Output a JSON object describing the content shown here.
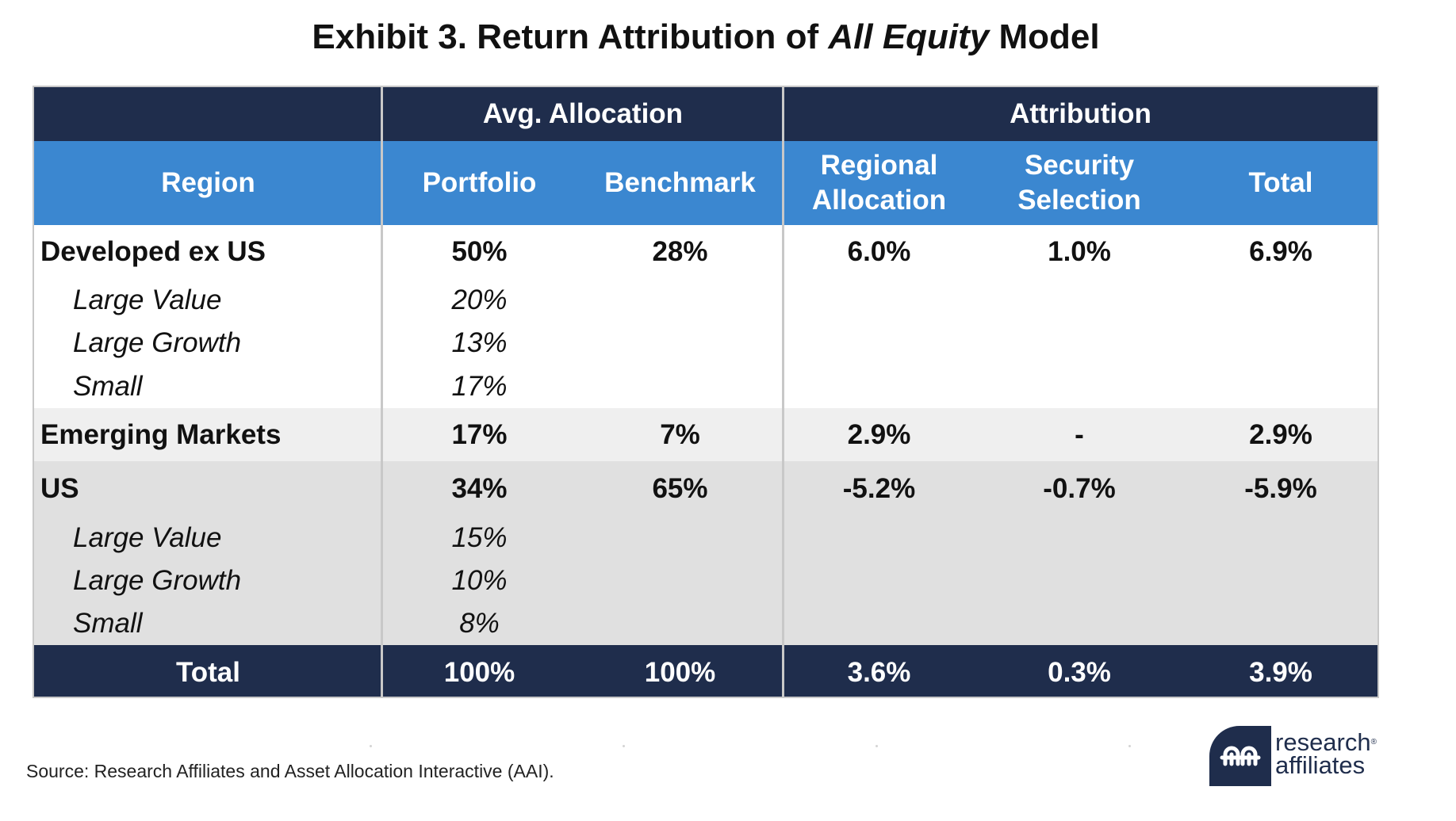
{
  "title": {
    "main": "Exhibit 3. Return Attribution of ",
    "italic": "All Equity",
    "suffix": " Model"
  },
  "chart_data": {
    "type": "table",
    "group_headers": [
      "Avg. Allocation",
      "Attribution"
    ],
    "columns": [
      "Region",
      "Portfolio",
      "Benchmark",
      "Regional Allocation",
      "Security Selection",
      "Total"
    ],
    "rows": [
      {
        "label": "Developed ex US",
        "portfolio": "50%",
        "benchmark": "28%",
        "regional": "6.0%",
        "security": "1.0%",
        "total": "6.9%",
        "subs": [
          {
            "label": "Large Value",
            "portfolio": "20%"
          },
          {
            "label": "Large Growth",
            "portfolio": "13%"
          },
          {
            "label": "Small",
            "portfolio": "17%"
          }
        ]
      },
      {
        "label": "Emerging Markets",
        "portfolio": "17%",
        "benchmark": "7%",
        "regional": "2.9%",
        "security": "-",
        "total": "2.9%"
      },
      {
        "label": "US",
        "portfolio": "34%",
        "benchmark": "65%",
        "regional": "-5.2%",
        "security": "-0.7%",
        "total": "-5.9%",
        "subs": [
          {
            "label": "Large Value",
            "portfolio": "15%"
          },
          {
            "label": "Large Growth",
            "portfolio": "10%"
          },
          {
            "label": "Small",
            "portfolio": "8%"
          }
        ]
      }
    ],
    "total_row": {
      "label": "Total",
      "portfolio": "100%",
      "benchmark": "100%",
      "regional": "3.6%",
      "security": "0.3%",
      "total": "3.9%"
    }
  },
  "headers": {
    "regional_line1": "Regional",
    "regional_line2": "Allocation",
    "security_line1": "Security",
    "security_line2": "Selection"
  },
  "source": "Source: Research Affiliates and Asset Allocation Interactive (AAI).",
  "logo": {
    "line1": "research",
    "line2": "affiliates",
    "reg": "®"
  },
  "colors": {
    "navy": "#1f2d4c",
    "header_blue": "#3b87d0",
    "light_row": "#efefef",
    "grey_band": "#e0e0e0"
  }
}
